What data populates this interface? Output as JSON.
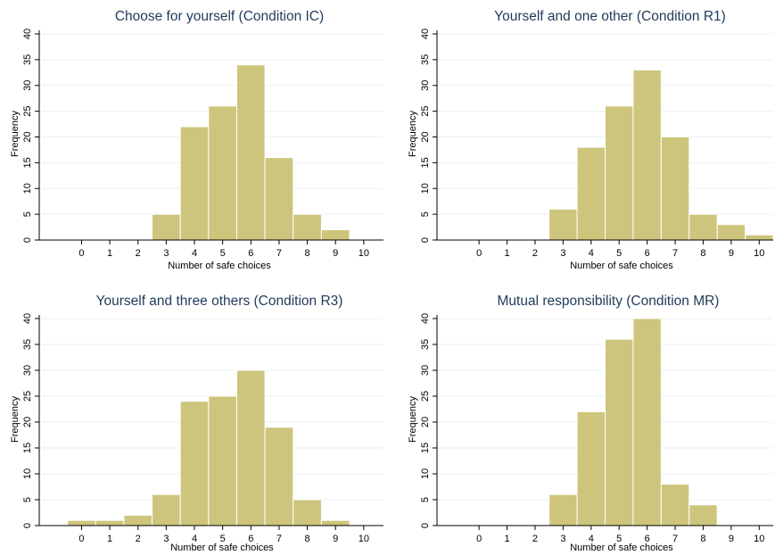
{
  "colors": {
    "bar": "#cdc57c",
    "title": "#1f3a5a",
    "grid": "#eaf0f3"
  },
  "chart_data": [
    {
      "type": "bar",
      "title": "Choose for yourself (Condition IC)",
      "xlabel": "Number of safe choices",
      "ylabel": "Frequency",
      "x_ticks": [
        0,
        1,
        2,
        3,
        4,
        5,
        6,
        7,
        8,
        9,
        10
      ],
      "y_ticks": [
        0,
        5,
        10,
        15,
        20,
        25,
        30,
        35,
        40
      ],
      "xlim": [
        -1.5,
        10.7
      ],
      "ylim": [
        0,
        40
      ],
      "grid": true,
      "x": [
        0,
        1,
        2,
        3,
        4,
        5,
        6,
        7,
        8,
        9,
        10
      ],
      "values": [
        0,
        0,
        0,
        5,
        22,
        26,
        34,
        16,
        5,
        2,
        0
      ]
    },
    {
      "type": "bar",
      "title": "Yourself and one other (Condition R1)",
      "xlabel": "Number of safe choices",
      "ylabel": "Frequency",
      "x_ticks": [
        0,
        1,
        2,
        3,
        4,
        5,
        6,
        7,
        8,
        9,
        10
      ],
      "y_ticks": [
        0,
        5,
        10,
        15,
        20,
        25,
        30,
        35,
        40
      ],
      "xlim": [
        -1.5,
        10.5
      ],
      "ylim": [
        0,
        40
      ],
      "grid": true,
      "x": [
        0,
        1,
        2,
        3,
        4,
        5,
        6,
        7,
        8,
        9,
        10
      ],
      "values": [
        0,
        0,
        0,
        6,
        18,
        26,
        33,
        20,
        5,
        3,
        1
      ]
    },
    {
      "type": "bar",
      "title": "Yourself and three others (Condition R3)",
      "xlabel": "Number of safe choices",
      "ylabel": "Frequency",
      "x_ticks": [
        0,
        1,
        2,
        3,
        4,
        5,
        6,
        7,
        8,
        9,
        10
      ],
      "y_ticks": [
        0,
        5,
        10,
        15,
        20,
        25,
        30,
        35,
        40
      ],
      "xlim": [
        -1.5,
        10.7
      ],
      "ylim": [
        0,
        40
      ],
      "grid": true,
      "x": [
        0,
        1,
        2,
        3,
        4,
        5,
        6,
        7,
        8,
        9,
        10
      ],
      "values": [
        1,
        1,
        2,
        6,
        24,
        25,
        30,
        19,
        5,
        1,
        0
      ]
    },
    {
      "type": "bar",
      "title": "Mutual responsibility (Condition MR)",
      "xlabel": "Number of safe choices",
      "ylabel": "Frequency",
      "x_ticks": [
        0,
        1,
        2,
        3,
        4,
        5,
        6,
        7,
        8,
        9,
        10
      ],
      "y_ticks": [
        0,
        5,
        10,
        15,
        20,
        25,
        30,
        35,
        40
      ],
      "xlim": [
        -1.5,
        10.5
      ],
      "ylim": [
        0,
        40
      ],
      "grid": true,
      "x": [
        0,
        1,
        2,
        3,
        4,
        5,
        6,
        7,
        8,
        9,
        10
      ],
      "values": [
        0,
        0,
        0,
        6,
        22,
        36,
        40,
        8,
        4,
        0,
        0
      ]
    }
  ]
}
